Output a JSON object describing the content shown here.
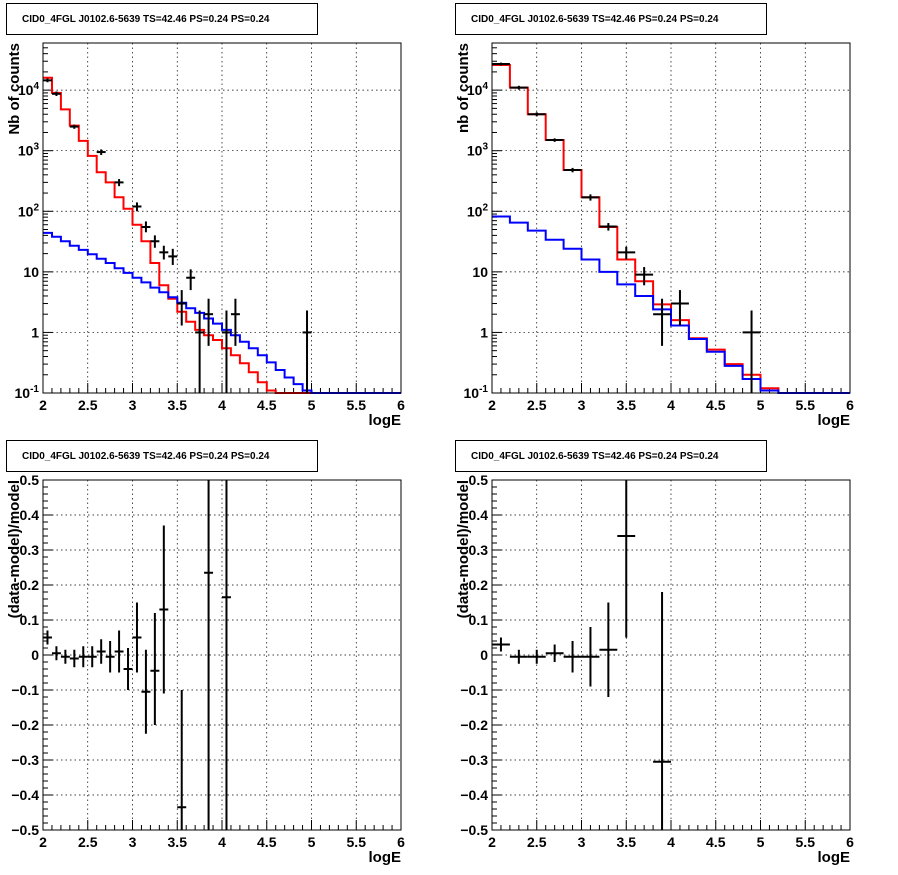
{
  "chart_data": [
    {
      "type": "histogram",
      "title": "CID0_4FGL J0102.6-5639 TS=42.46 PS=0.24 PS=0.24",
      "xlabel": "logE",
      "ylabel": "Nb of counts",
      "xlim": [
        2,
        6
      ],
      "ylim": [
        0.1,
        60000
      ],
      "yscale": "log",
      "grid": true,
      "xticks": [
        "2",
        "2.5",
        "3",
        "3.5",
        "4",
        "4.5",
        "5",
        "5.5",
        "6"
      ],
      "yticks": [
        "10^-1",
        "1",
        "10",
        "10^2",
        "10^3",
        "10^4"
      ],
      "bin_edges": [
        2.0,
        2.1,
        2.2,
        2.3,
        2.4,
        2.5,
        2.6,
        2.7,
        2.8,
        2.9,
        3.0,
        3.1,
        3.2,
        3.3,
        3.4,
        3.5,
        3.6,
        3.7,
        3.8,
        3.9,
        4.0,
        4.1,
        4.2,
        4.3,
        4.4,
        4.5,
        4.6,
        4.7,
        4.8,
        4.9,
        5.0,
        5.1,
        5.2,
        5.3,
        5.4,
        5.5,
        5.6,
        5.7,
        5.8,
        5.9,
        6.0
      ],
      "series": [
        {
          "color": "#ff0000",
          "style": "step",
          "values": [
            16000,
            9000,
            4800,
            2600,
            1450,
            820,
            440,
            300,
            170,
            110,
            60,
            32,
            14,
            6,
            3.6,
            2.2,
            1.5,
            1.1,
            0.9,
            0.75,
            0.55,
            0.42,
            0.31,
            0.22,
            0.15,
            0.11,
            0.1,
            0.1,
            0.1,
            0.1,
            0.1,
            0.1,
            0.1,
            0.1,
            0.1,
            0.1,
            0.1,
            0.1,
            0.1,
            0.1
          ]
        },
        {
          "color": "#0000ff",
          "style": "step",
          "values": [
            44,
            38,
            32,
            27,
            23,
            19.5,
            16.5,
            14,
            11.5,
            9.6,
            8,
            6.7,
            5.5,
            4.6,
            3.8,
            3.1,
            2.5,
            2.1,
            1.7,
            1.4,
            1.1,
            0.9,
            0.7,
            0.55,
            0.42,
            0.32,
            0.24,
            0.18,
            0.14,
            0.11,
            0.1,
            0.1,
            0.1,
            0.1,
            0.1,
            0.1,
            0.1,
            0.1,
            0.1,
            0.1
          ]
        }
      ],
      "data_points": [
        {
          "x": 2.05,
          "y": 14500,
          "lo": 13500,
          "hi": 15600
        },
        {
          "x": 2.15,
          "y": 8700,
          "lo": 8000,
          "hi": 9500
        },
        {
          "x": 2.35,
          "y": 2500,
          "lo": 2300,
          "hi": 2700
        },
        {
          "x": 2.65,
          "y": 950,
          "lo": 850,
          "hi": 1050
        },
        {
          "x": 2.85,
          "y": 300,
          "lo": 260,
          "hi": 340
        },
        {
          "x": 3.05,
          "y": 120,
          "lo": 100,
          "hi": 140
        },
        {
          "x": 3.15,
          "y": 55,
          "lo": 45,
          "hi": 68
        },
        {
          "x": 3.25,
          "y": 32,
          "lo": 25,
          "hi": 40
        },
        {
          "x": 3.35,
          "y": 21,
          "lo": 16,
          "hi": 27
        },
        {
          "x": 3.45,
          "y": 18,
          "lo": 13,
          "hi": 24
        },
        {
          "x": 3.55,
          "y": 3,
          "lo": 1.3,
          "hi": 5
        },
        {
          "x": 3.65,
          "y": 8,
          "lo": 5,
          "hi": 11
        },
        {
          "x": 3.75,
          "y": 1,
          "lo": 0.1,
          "hi": 2.3
        },
        {
          "x": 3.85,
          "y": 2,
          "lo": 0.6,
          "hi": 3.6
        },
        {
          "x": 4.05,
          "y": 1,
          "lo": 0.1,
          "hi": 2.3
        },
        {
          "x": 4.15,
          "y": 2,
          "lo": 0.6,
          "hi": 3.6
        },
        {
          "x": 4.95,
          "y": 1,
          "lo": 0.1,
          "hi": 2.3
        }
      ]
    },
    {
      "type": "histogram",
      "title": "CID0_4FGL J0102.6-5639 TS=42.46 PS=0.24 PS=0.24",
      "xlabel": "logE",
      "ylabel": "nb of counts",
      "xlim": [
        2,
        6
      ],
      "ylim": [
        0.1,
        60000
      ],
      "yscale": "log",
      "grid": true,
      "xticks": [
        "2",
        "2.5",
        "3",
        "3.5",
        "4",
        "4.5",
        "5",
        "5.5",
        "6"
      ],
      "yticks": [
        "10^-1",
        "1",
        "10",
        "10^2",
        "10^3",
        "10^4"
      ],
      "bin_edges": [
        2.0,
        2.2,
        2.4,
        2.6,
        2.8,
        3.0,
        3.2,
        3.4,
        3.6,
        3.8,
        4.0,
        4.2,
        4.4,
        4.6,
        4.8,
        5.0,
        5.2,
        5.4,
        5.6,
        5.8,
        6.0
      ],
      "series": [
        {
          "color": "#ff0000",
          "style": "step",
          "values": [
            26000,
            11000,
            4000,
            1500,
            480,
            170,
            55,
            16,
            7,
            2.9,
            1.6,
            0.8,
            0.52,
            0.3,
            0.2,
            0.12,
            0.1,
            0.1,
            0.1,
            0.1
          ]
        },
        {
          "color": "#0000ff",
          "style": "step",
          "values": [
            82,
            65,
            48,
            34,
            24,
            16,
            10,
            6.2,
            4,
            2.4,
            1.3,
            0.78,
            0.48,
            0.28,
            0.17,
            0.11,
            0.1,
            0.1,
            0.1,
            0.1
          ]
        }
      ],
      "data_points": [
        {
          "x": 2.1,
          "y": 27000,
          "lo": 25500,
          "hi": 28500
        },
        {
          "x": 2.3,
          "y": 11000,
          "lo": 10200,
          "hi": 11800
        },
        {
          "x": 2.5,
          "y": 4000,
          "lo": 3700,
          "hi": 4300
        },
        {
          "x": 2.7,
          "y": 1500,
          "lo": 1400,
          "hi": 1600
        },
        {
          "x": 2.9,
          "y": 480,
          "lo": 440,
          "hi": 520
        },
        {
          "x": 3.1,
          "y": 170,
          "lo": 150,
          "hi": 190
        },
        {
          "x": 3.3,
          "y": 56,
          "lo": 48,
          "hi": 64
        },
        {
          "x": 3.5,
          "y": 21,
          "lo": 16,
          "hi": 26
        },
        {
          "x": 3.7,
          "y": 9,
          "lo": 6,
          "hi": 12
        },
        {
          "x": 3.9,
          "y": 2,
          "lo": 0.6,
          "hi": 3.6
        },
        {
          "x": 4.1,
          "y": 3,
          "lo": 1.3,
          "hi": 5
        },
        {
          "x": 4.9,
          "y": 1,
          "lo": 0.1,
          "hi": 2.3
        }
      ]
    },
    {
      "type": "scatter",
      "title": "CID0_4FGL J0102.6-5639 TS=42.46 PS=0.24 PS=0.24",
      "xlabel": "logE",
      "ylabel": "(data-model)/model",
      "xlim": [
        2,
        6
      ],
      "ylim": [
        -0.5,
        0.5
      ],
      "grid": true,
      "xticks": [
        "2",
        "2.5",
        "3",
        "3.5",
        "4",
        "4.5",
        "5",
        "5.5",
        "6"
      ],
      "yticks": [
        "-0.5",
        "-0.4",
        "-0.3",
        "-0.2",
        "-0.1",
        "0",
        "0.1",
        "0.2",
        "0.3",
        "0.4",
        "0.5"
      ],
      "xerr": 0.05,
      "data_points": [
        {
          "x": 2.05,
          "y": 0.05,
          "lo": 0.03,
          "hi": 0.07
        },
        {
          "x": 2.15,
          "y": 0.005,
          "lo": -0.015,
          "hi": 0.025
        },
        {
          "x": 2.25,
          "y": -0.005,
          "lo": -0.025,
          "hi": 0.015
        },
        {
          "x": 2.35,
          "y": -0.01,
          "lo": -0.035,
          "hi": 0.015
        },
        {
          "x": 2.45,
          "y": -0.005,
          "lo": -0.035,
          "hi": 0.025
        },
        {
          "x": 2.55,
          "y": -0.005,
          "lo": -0.035,
          "hi": 0.025
        },
        {
          "x": 2.65,
          "y": 0.01,
          "lo": -0.025,
          "hi": 0.045
        },
        {
          "x": 2.75,
          "y": -0.005,
          "lo": -0.05,
          "hi": 0.04
        },
        {
          "x": 2.85,
          "y": 0.01,
          "lo": -0.05,
          "hi": 0.07
        },
        {
          "x": 2.95,
          "y": -0.04,
          "lo": -0.1,
          "hi": 0.02
        },
        {
          "x": 3.05,
          "y": 0.05,
          "lo": -0.05,
          "hi": 0.15
        },
        {
          "x": 3.15,
          "y": -0.105,
          "lo": -0.225,
          "hi": 0.015
        },
        {
          "x": 3.25,
          "y": -0.045,
          "lo": -0.2,
          "hi": 0.12
        },
        {
          "x": 3.35,
          "y": 0.13,
          "lo": -0.11,
          "hi": 0.37
        },
        {
          "x": 3.55,
          "y": -0.435,
          "lo": -0.5,
          "hi": -0.1
        },
        {
          "x": 3.85,
          "y": 0.235,
          "lo": -0.5,
          "hi": 0.5
        },
        {
          "x": 4.05,
          "y": 0.165,
          "lo": -0.5,
          "hi": 0.5
        }
      ]
    },
    {
      "type": "scatter",
      "title": "CID0_4FGL J0102.6-5639 TS=42.46 PS=0.24 PS=0.24",
      "xlabel": "logE",
      "ylabel": "(data-model)/model",
      "xlim": [
        2,
        6
      ],
      "ylim": [
        -0.5,
        0.5
      ],
      "grid": true,
      "xticks": [
        "2",
        "2.5",
        "3",
        "3.5",
        "4",
        "4.5",
        "5",
        "5.5",
        "6"
      ],
      "yticks": [
        "-0.5",
        "-0.4",
        "-0.3",
        "-0.2",
        "-0.1",
        "0",
        "0.1",
        "0.2",
        "0.3",
        "0.4",
        "0.5"
      ],
      "xerr": 0.1,
      "data_points": [
        {
          "x": 2.1,
          "y": 0.03,
          "lo": 0.01,
          "hi": 0.05
        },
        {
          "x": 2.3,
          "y": -0.005,
          "lo": -0.025,
          "hi": 0.015
        },
        {
          "x": 2.5,
          "y": -0.005,
          "lo": -0.025,
          "hi": 0.015
        },
        {
          "x": 2.7,
          "y": 0.005,
          "lo": -0.02,
          "hi": 0.03
        },
        {
          "x": 2.9,
          "y": -0.005,
          "lo": -0.05,
          "hi": 0.04
        },
        {
          "x": 3.1,
          "y": -0.005,
          "lo": -0.09,
          "hi": 0.08
        },
        {
          "x": 3.3,
          "y": 0.015,
          "lo": -0.12,
          "hi": 0.15
        },
        {
          "x": 3.5,
          "y": 0.34,
          "lo": 0.05,
          "hi": 0.5
        },
        {
          "x": 3.9,
          "y": -0.305,
          "lo": -0.5,
          "hi": 0.18
        }
      ]
    }
  ]
}
